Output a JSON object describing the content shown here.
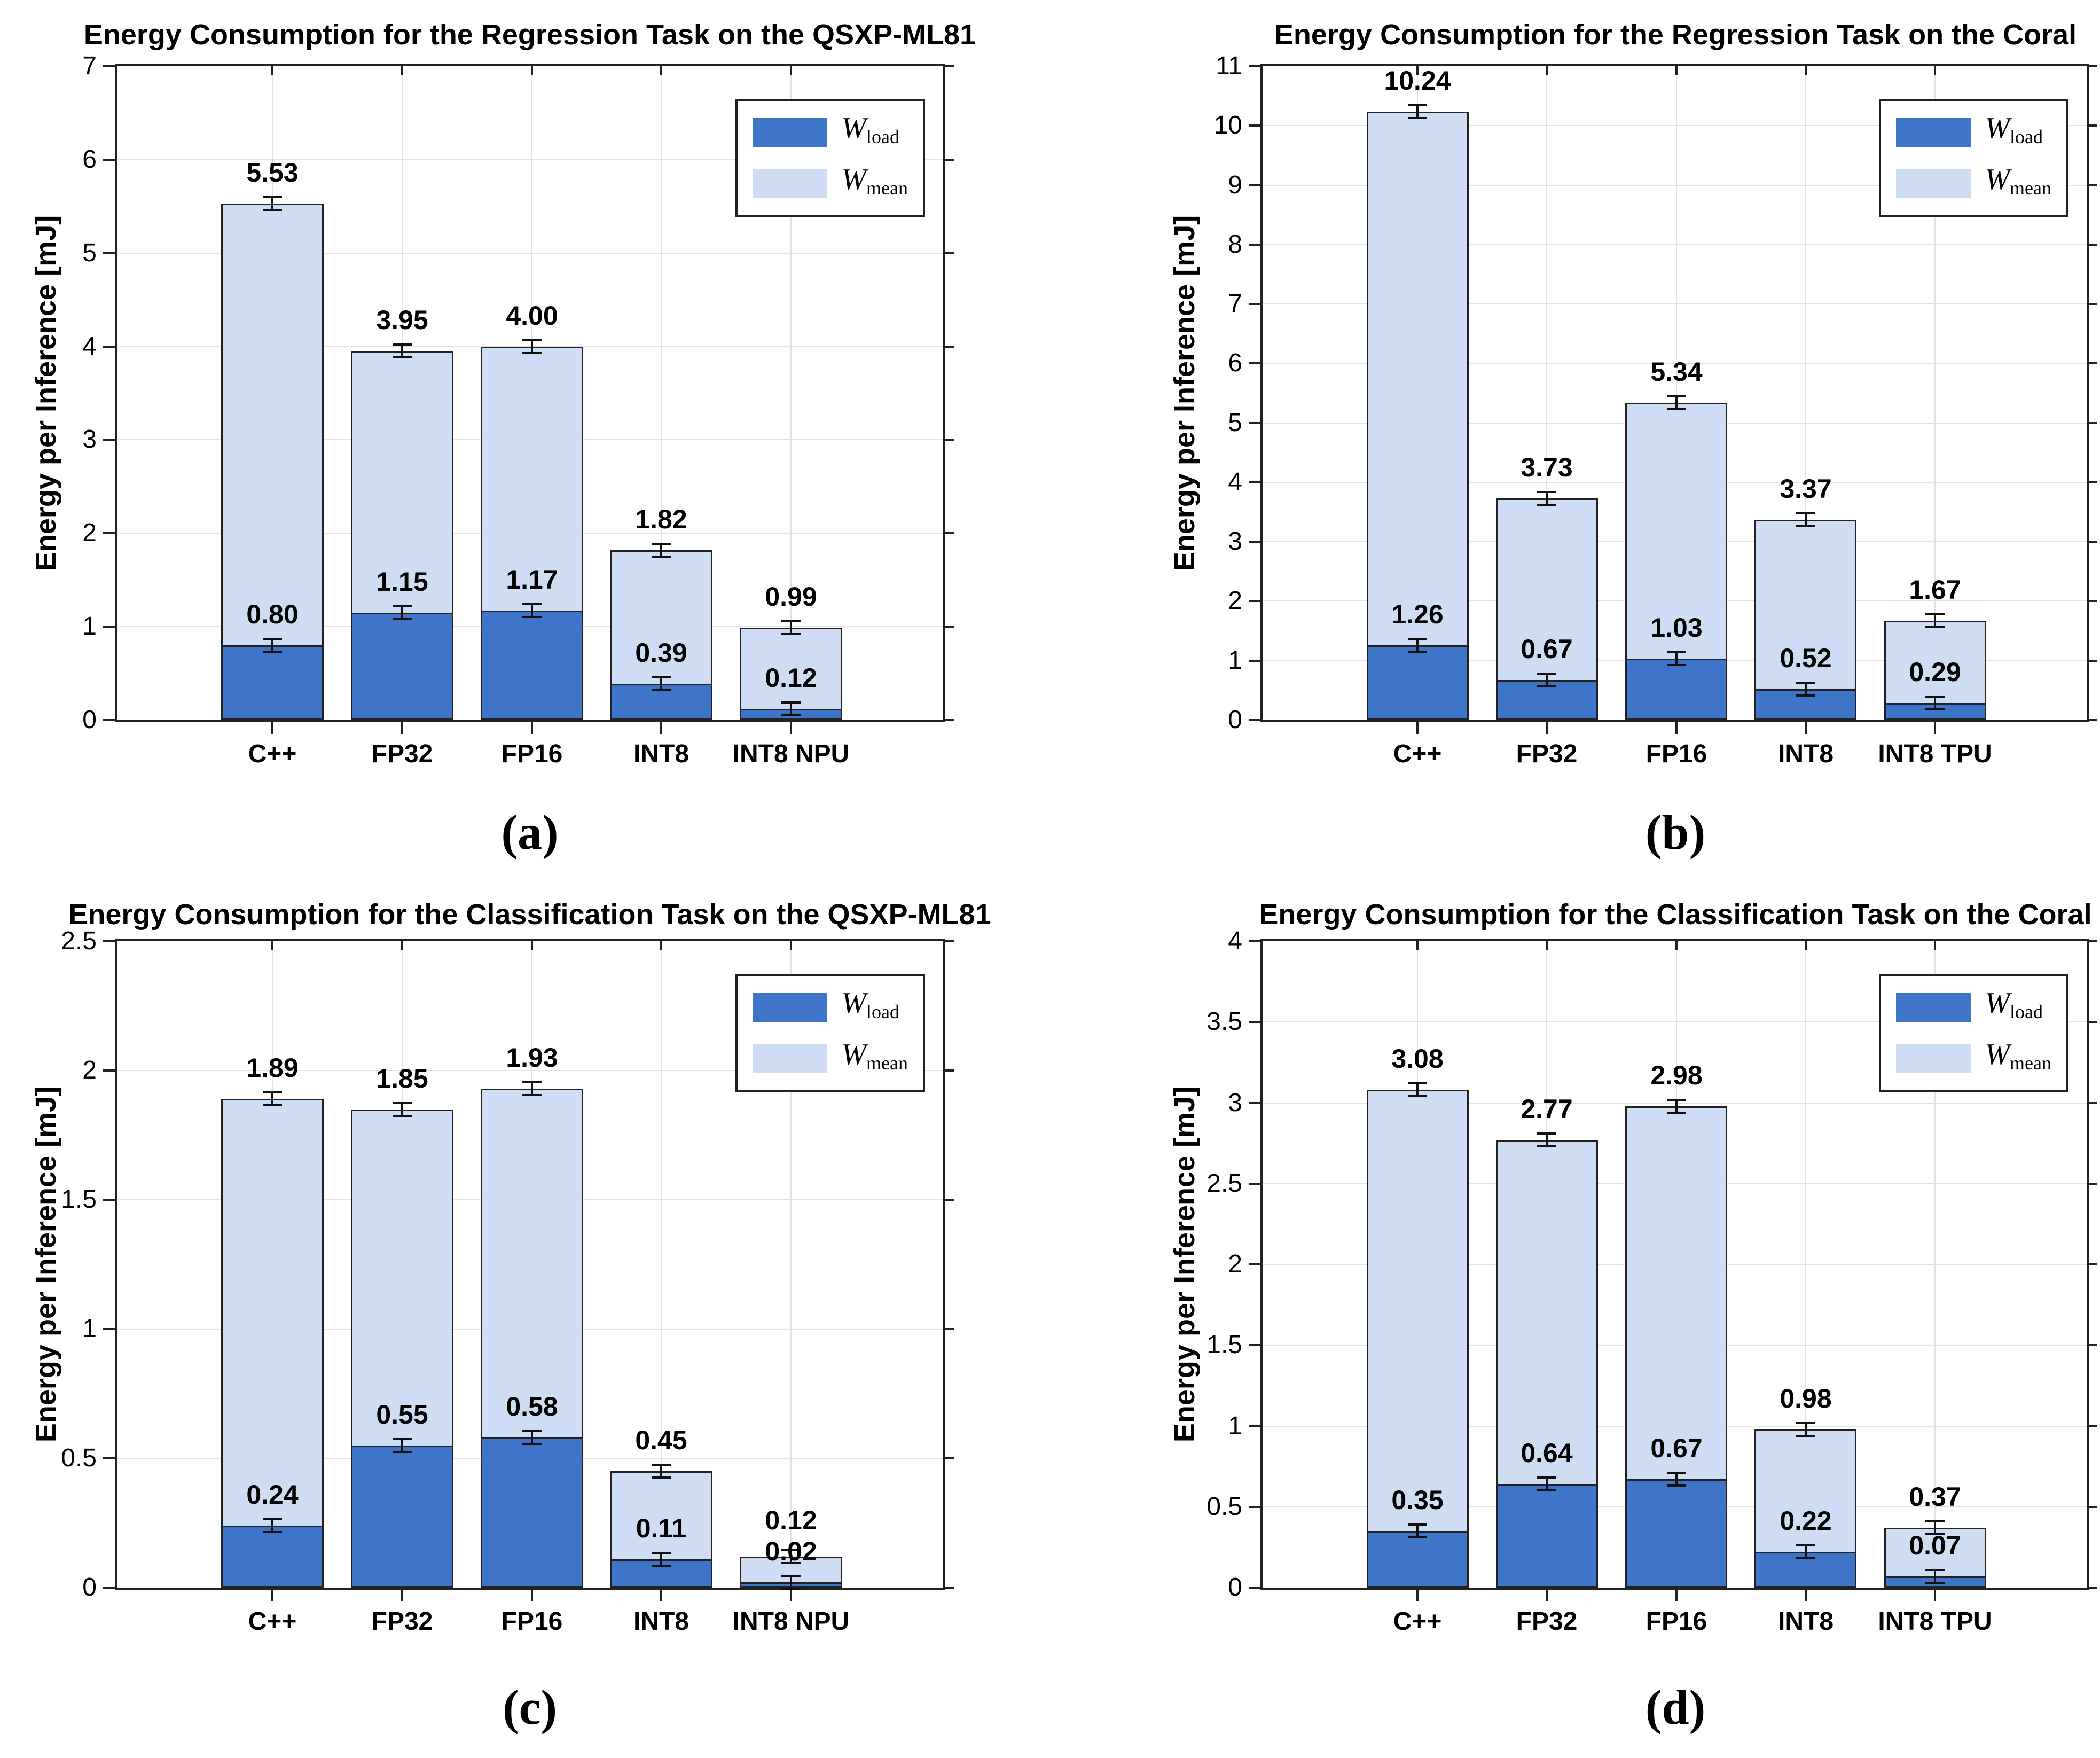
{
  "shared": {
    "colors": {
      "load": "#3F75C9",
      "mean": "#CEDDF3",
      "edge": "#222222",
      "grid": "#E2E2E2",
      "axis": "#222222",
      "error_bar": "#111111",
      "background": "#FFFFFF",
      "text": "#000000"
    },
    "legend": [
      {
        "main": "W",
        "sub": "load",
        "series": "W_load"
      },
      {
        "main": "W",
        "sub": "mean",
        "series": "W_mean"
      }
    ]
  },
  "chart_data": [
    {
      "id": "a",
      "caption": "(a)",
      "type": "bar",
      "stacked": true,
      "grid": true,
      "error_bars": true,
      "legend_position": "top-right",
      "title": "Energy Consumption for the Regression Task on the QSXP-ML81",
      "ylabel": "Energy per Inference [mJ]",
      "xlabel": "",
      "ylim": [
        0,
        7
      ],
      "yticks": [
        "0",
        "1",
        "2",
        "3",
        "4",
        "5",
        "6",
        "7"
      ],
      "categories": [
        "C++",
        "FP32",
        "FP16",
        "INT8",
        "INT8 NPU"
      ],
      "series": [
        {
          "name": "W_load",
          "values": [
            0.8,
            1.15,
            1.17,
            0.39,
            0.12
          ]
        },
        {
          "name": "W_mean",
          "values": [
            4.73,
            2.8,
            2.83,
            1.43,
            0.87
          ]
        }
      ],
      "totals": [
        5.53,
        3.95,
        4.0,
        1.82,
        0.99
      ],
      "segment_labels": [
        "0.80",
        "1.15",
        "1.17",
        "0.39",
        "0.12"
      ],
      "total_labels": [
        "5.53",
        "3.95",
        "4.00",
        "1.82",
        "0.99"
      ]
    },
    {
      "id": "b",
      "caption": "(b)",
      "type": "bar",
      "stacked": true,
      "grid": true,
      "error_bars": true,
      "legend_position": "top-right",
      "title": "Energy Consumption for the Regression Task on the Coral",
      "ylabel": "Energy per Inference [mJ]",
      "xlabel": "",
      "ylim": [
        0,
        11
      ],
      "yticks": [
        "0",
        "1",
        "2",
        "3",
        "4",
        "5",
        "6",
        "7",
        "8",
        "9",
        "10",
        "11"
      ],
      "categories": [
        "C++",
        "FP32",
        "FP16",
        "INT8",
        "INT8 TPU"
      ],
      "series": [
        {
          "name": "W_load",
          "values": [
            1.26,
            0.67,
            1.03,
            0.52,
            0.29
          ]
        },
        {
          "name": "W_mean",
          "values": [
            8.98,
            3.06,
            4.31,
            2.85,
            1.38
          ]
        }
      ],
      "totals": [
        10.24,
        3.73,
        5.34,
        3.37,
        1.67
      ],
      "segment_labels": [
        "1.26",
        "0.67",
        "1.03",
        "0.52",
        "0.29"
      ],
      "total_labels": [
        "10.24",
        "3.73",
        "5.34",
        "3.37",
        "1.67"
      ]
    },
    {
      "id": "c",
      "caption": "(c)",
      "type": "bar",
      "stacked": true,
      "grid": true,
      "error_bars": true,
      "legend_position": "top-right",
      "title": "Energy Consumption for the Classification Task on the QSXP-ML81",
      "ylabel": "Energy per Inference [mJ]",
      "xlabel": "",
      "ylim": [
        0,
        2.5
      ],
      "yticks": [
        "0",
        "0.5",
        "1",
        "1.5",
        "2",
        "2.5"
      ],
      "categories": [
        "C++",
        "FP32",
        "FP16",
        "INT8",
        "INT8 NPU"
      ],
      "series": [
        {
          "name": "W_load",
          "values": [
            0.24,
            0.55,
            0.58,
            0.11,
            0.02
          ]
        },
        {
          "name": "W_mean",
          "values": [
            1.65,
            1.3,
            1.35,
            0.34,
            0.1
          ]
        }
      ],
      "totals": [
        1.89,
        1.85,
        1.93,
        0.45,
        0.12
      ],
      "segment_labels": [
        "0.24",
        "0.55",
        "0.58",
        "0.11",
        "0.02"
      ],
      "total_labels": [
        "1.89",
        "1.85",
        "1.93",
        "0.45",
        "0.12"
      ]
    },
    {
      "id": "d",
      "caption": "(d)",
      "type": "bar",
      "stacked": true,
      "grid": true,
      "error_bars": true,
      "legend_position": "top-right",
      "title": "Energy Consumption for the Classification Task on the Coral",
      "ylabel": "Energy per Inference [mJ]",
      "xlabel": "",
      "ylim": [
        0,
        4
      ],
      "yticks": [
        "0",
        "0.5",
        "1",
        "1.5",
        "2",
        "2.5",
        "3",
        "3.5",
        "4"
      ],
      "categories": [
        "C++",
        "FP32",
        "FP16",
        "INT8",
        "INT8 TPU"
      ],
      "series": [
        {
          "name": "W_load",
          "values": [
            0.35,
            0.64,
            0.67,
            0.22,
            0.07
          ]
        },
        {
          "name": "W_mean",
          "values": [
            2.73,
            2.13,
            2.31,
            0.76,
            0.3
          ]
        }
      ],
      "totals": [
        3.08,
        2.77,
        2.98,
        0.98,
        0.37
      ],
      "segment_labels": [
        "0.35",
        "0.64",
        "0.67",
        "0.22",
        "0.07"
      ],
      "total_labels": [
        "3.08",
        "2.77",
        "2.98",
        "0.98",
        "0.37"
      ]
    }
  ]
}
